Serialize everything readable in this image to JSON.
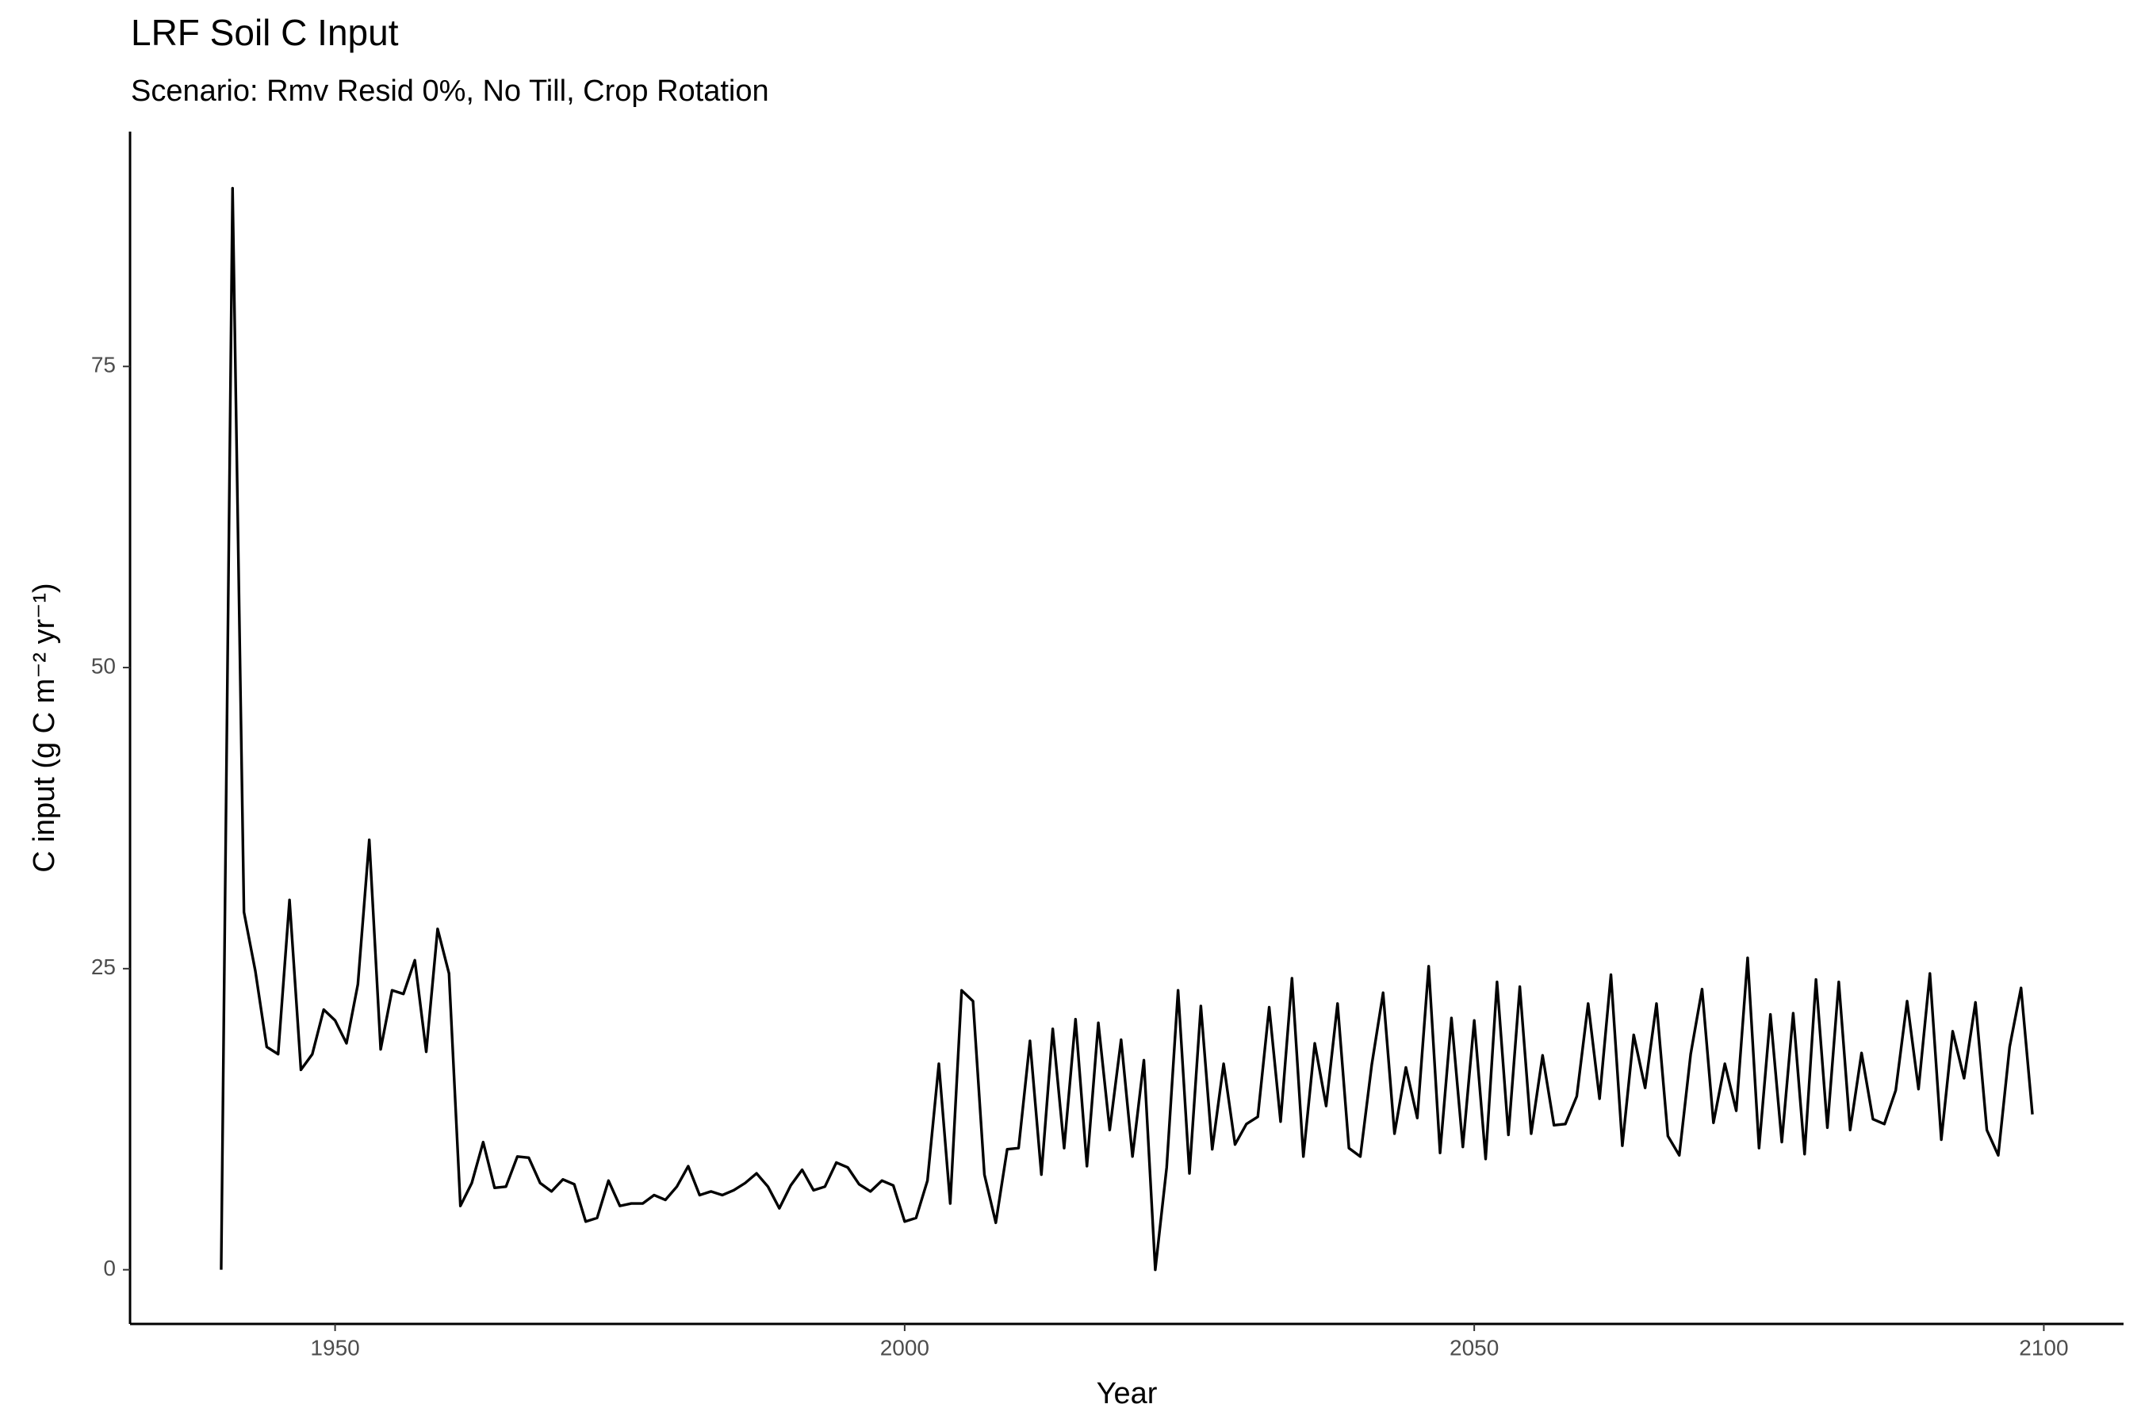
{
  "chart_data": {
    "type": "line",
    "title": "LRF Soil C Input",
    "subtitle": "Scenario: Rmv Resid 0%, No Till, Crop Rotation",
    "x_label": "Year",
    "y_label": "C input (g C m⁻² yr⁻¹)",
    "x": [
      1940,
      1941,
      1942,
      1943,
      1944,
      1945,
      1946,
      1947,
      1948,
      1949,
      1950,
      1951,
      1952,
      1953,
      1954,
      1955,
      1956,
      1957,
      1958,
      1959,
      1960,
      1961,
      1962,
      1963,
      1964,
      1965,
      1966,
      1967,
      1968,
      1969,
      1970,
      1971,
      1972,
      1973,
      1974,
      1975,
      1976,
      1977,
      1978,
      1979,
      1980,
      1981,
      1982,
      1983,
      1984,
      1985,
      1986,
      1987,
      1988,
      1989,
      1990,
      1991,
      1992,
      1993,
      1994,
      1995,
      1996,
      1997,
      1998,
      1999,
      2000,
      2001,
      2002,
      2003,
      2004,
      2005,
      2006,
      2007,
      2008,
      2009,
      2010,
      2011,
      2012,
      2013,
      2014,
      2015,
      2016,
      2017,
      2018,
      2019,
      2020,
      2021,
      2022,
      2023,
      2024,
      2025,
      2026,
      2027,
      2028,
      2029,
      2030,
      2031,
      2032,
      2033,
      2034,
      2035,
      2036,
      2037,
      2038,
      2039,
      2040,
      2041,
      2042,
      2043,
      2044,
      2045,
      2046,
      2047,
      2048,
      2049,
      2050,
      2051,
      2052,
      2053,
      2054,
      2055,
      2056,
      2057,
      2058,
      2059,
      2060,
      2061,
      2062,
      2063,
      2064,
      2065,
      2066,
      2067,
      2068,
      2069,
      2070,
      2071,
      2072,
      2073,
      2074,
      2075,
      2076,
      2077,
      2078,
      2079,
      2080,
      2081,
      2082,
      2083,
      2084,
      2085,
      2086,
      2087,
      2088,
      2089,
      2090,
      2091,
      2092,
      2093,
      2094,
      2095,
      2096,
      2097,
      2098,
      2099
    ],
    "values": [
      0.0,
      89.8,
      29.7,
      24.8,
      18.5,
      17.9,
      30.7,
      16.6,
      17.9,
      21.6,
      20.7,
      18.8,
      23.7,
      35.7,
      18.3,
      23.2,
      22.9,
      25.7,
      18.1,
      28.3,
      24.6,
      5.3,
      7.2,
      10.6,
      6.8,
      6.9,
      9.4,
      9.3,
      7.2,
      6.5,
      7.5,
      7.1,
      4.0,
      4.3,
      7.4,
      5.3,
      5.5,
      5.5,
      6.2,
      5.8,
      6.9,
      8.6,
      6.2,
      6.5,
      6.2,
      6.6,
      7.2,
      8.0,
      6.9,
      5.1,
      7.0,
      8.3,
      6.6,
      6.9,
      8.9,
      8.5,
      7.1,
      6.5,
      7.4,
      7.0,
      4.0,
      4.3,
      7.4,
      17.1,
      5.5,
      23.2,
      22.3,
      7.9,
      3.9,
      10.0,
      10.1,
      19.0,
      7.9,
      20.0,
      10.1,
      20.8,
      8.6,
      20.5,
      11.6,
      19.1,
      9.4,
      17.4,
      0.0,
      8.5,
      23.2,
      8.0,
      21.9,
      10.0,
      17.1,
      10.4,
      12.1,
      12.7,
      21.8,
      12.3,
      24.2,
      9.4,
      18.8,
      13.6,
      22.1,
      10.1,
      9.4,
      17.0,
      23.0,
      11.3,
      16.8,
      12.6,
      25.2,
      9.7,
      20.9,
      10.2,
      20.7,
      9.2,
      23.9,
      11.2,
      23.5,
      11.3,
      17.8,
      12.0,
      12.1,
      14.4,
      22.1,
      14.2,
      24.5,
      10.3,
      19.5,
      15.1,
      22.1,
      11.1,
      9.5,
      17.9,
      23.3,
      12.2,
      17.1,
      13.2,
      25.9,
      10.1,
      21.2,
      10.6,
      21.3,
      9.6,
      24.1,
      11.8,
      23.9,
      11.6,
      18.0,
      12.5,
      12.1,
      14.9,
      22.3,
      15.0,
      24.6,
      10.8,
      19.8,
      15.9,
      22.2,
      11.6,
      9.5,
      18.5,
      23.4,
      12.9
    ],
    "color": "#000000",
    "xlim": [
      1932,
      2107
    ],
    "xticks": [
      1950,
      2000,
      2050,
      2100
    ],
    "ylim": [
      -4.5,
      94.5
    ],
    "yticks": [
      0,
      25,
      50,
      75
    ],
    "grid": false
  }
}
